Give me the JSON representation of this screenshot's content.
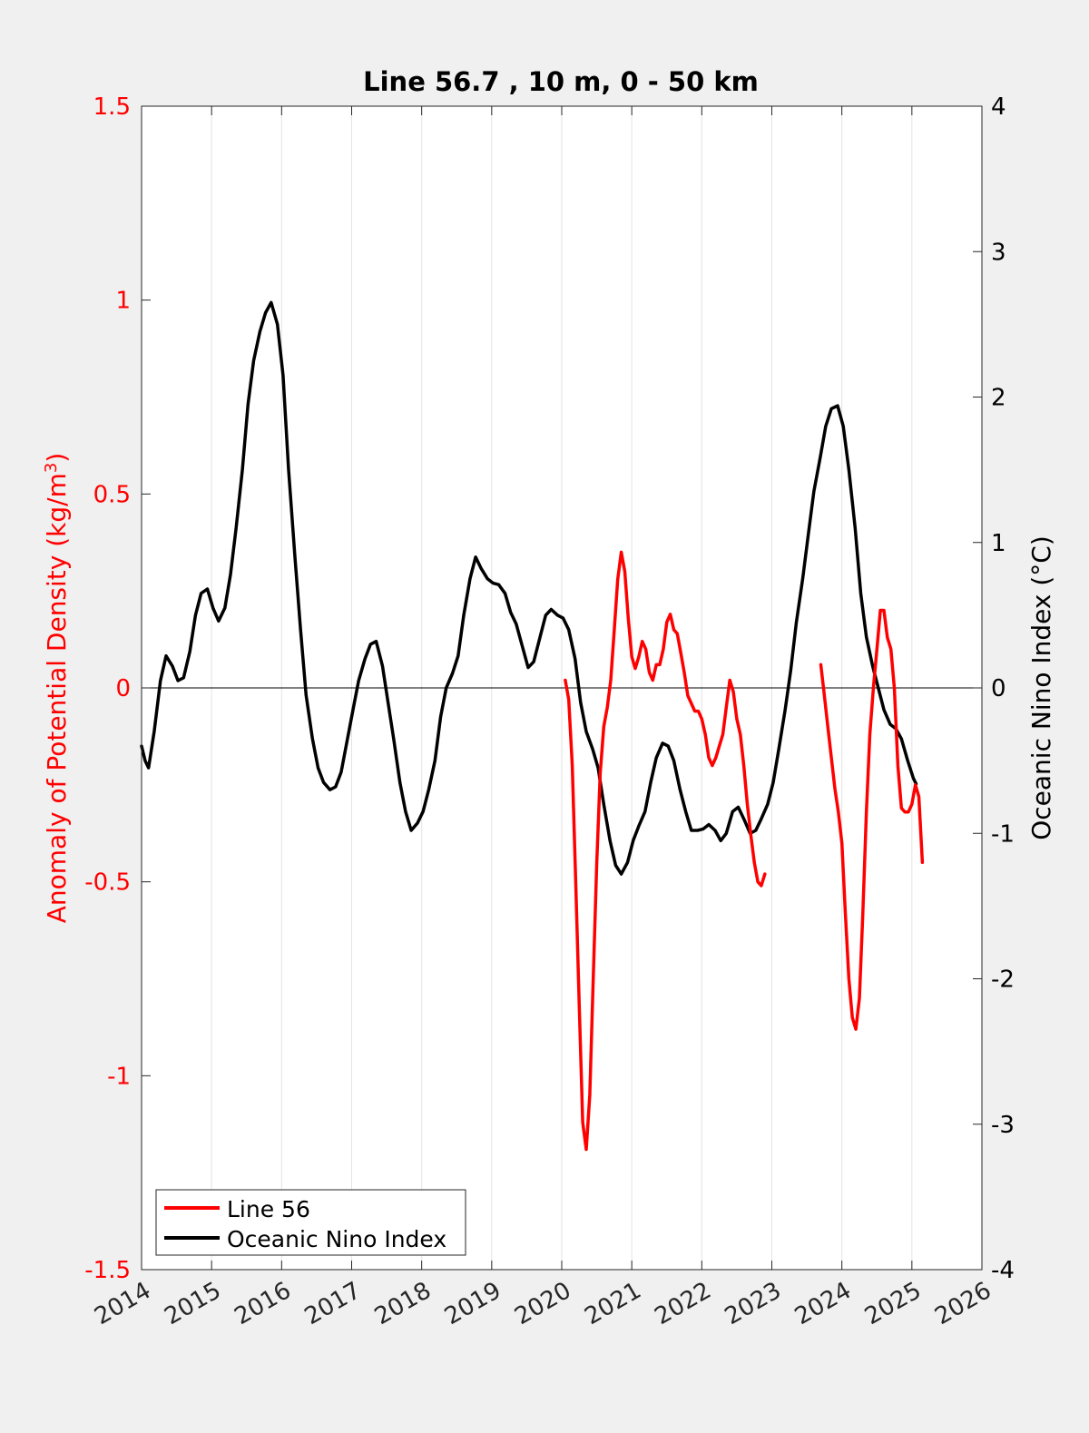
{
  "chart_data": {
    "type": "line",
    "title": "Line 56.7 , 10 m, 0 - 50 km",
    "xlabel": "",
    "ylabel_left": "Anomaly of Potential Density (kg/m",
    "ylabel_left_sup": "3",
    "ylabel_left_close": ")",
    "ylabel_right": "Oceanic Nino Index (°C)",
    "xlim": [
      2014,
      2026
    ],
    "ylim_left": [
      -1.5,
      1.5
    ],
    "ylim_right": [
      -4,
      4
    ],
    "x_ticks": [
      "2014",
      "2015",
      "2016",
      "2017",
      "2018",
      "2019",
      "2020",
      "2021",
      "2022",
      "2023",
      "2024",
      "2025",
      "2026"
    ],
    "y_left_ticks": [
      "-1.5",
      "-1",
      "-0.5",
      "0",
      "0.5",
      "1",
      "1.5"
    ],
    "y_right_ticks": [
      "-4",
      "-3",
      "-2",
      "-1",
      "0",
      "1",
      "2",
      "3",
      "4"
    ],
    "grid": "vertical",
    "legend_position": "bottom-left",
    "colors": {
      "line56": "#ff0000",
      "oni": "#000000",
      "left_axis": "#ff0000",
      "right_axis": "#000000"
    },
    "series": [
      {
        "name": "Line 56",
        "axis": "left",
        "segments": [
          [
            [
              2020.05,
              0.02
            ],
            [
              2020.1,
              -0.03
            ],
            [
              2020.15,
              -0.2
            ],
            [
              2020.2,
              -0.5
            ],
            [
              2020.25,
              -0.82
            ],
            [
              2020.3,
              -1.12
            ],
            [
              2020.35,
              -1.19
            ],
            [
              2020.4,
              -1.05
            ],
            [
              2020.45,
              -0.75
            ],
            [
              2020.5,
              -0.45
            ],
            [
              2020.55,
              -0.22
            ],
            [
              2020.6,
              -0.1
            ],
            [
              2020.65,
              -0.05
            ],
            [
              2020.7,
              0.02
            ],
            [
              2020.75,
              0.15
            ],
            [
              2020.8,
              0.28
            ],
            [
              2020.85,
              0.35
            ],
            [
              2020.9,
              0.3
            ],
            [
              2020.95,
              0.18
            ],
            [
              2021.0,
              0.08
            ],
            [
              2021.05,
              0.05
            ],
            [
              2021.1,
              0.08
            ],
            [
              2021.15,
              0.12
            ],
            [
              2021.2,
              0.1
            ],
            [
              2021.25,
              0.04
            ],
            [
              2021.3,
              0.02
            ],
            [
              2021.35,
              0.06
            ],
            [
              2021.4,
              0.06
            ],
            [
              2021.45,
              0.1
            ],
            [
              2021.5,
              0.17
            ],
            [
              2021.55,
              0.19
            ],
            [
              2021.6,
              0.15
            ],
            [
              2021.65,
              0.14
            ],
            [
              2021.7,
              0.09
            ],
            [
              2021.75,
              0.04
            ],
            [
              2021.8,
              -0.02
            ],
            [
              2021.85,
              -0.04
            ],
            [
              2021.9,
              -0.06
            ],
            [
              2021.95,
              -0.06
            ],
            [
              2022.0,
              -0.08
            ],
            [
              2022.05,
              -0.12
            ],
            [
              2022.1,
              -0.18
            ],
            [
              2022.15,
              -0.2
            ],
            [
              2022.2,
              -0.18
            ],
            [
              2022.25,
              -0.15
            ],
            [
              2022.3,
              -0.12
            ],
            [
              2022.35,
              -0.05
            ],
            [
              2022.4,
              0.02
            ],
            [
              2022.45,
              -0.01
            ],
            [
              2022.5,
              -0.08
            ],
            [
              2022.55,
              -0.12
            ],
            [
              2022.6,
              -0.2
            ],
            [
              2022.65,
              -0.3
            ],
            [
              2022.7,
              -0.38
            ],
            [
              2022.75,
              -0.45
            ],
            [
              2022.8,
              -0.5
            ],
            [
              2022.85,
              -0.51
            ],
            [
              2022.9,
              -0.48
            ]
          ],
          [
            [
              2023.7,
              0.06
            ],
            [
              2023.75,
              -0.02
            ],
            [
              2023.8,
              -0.1
            ],
            [
              2023.85,
              -0.18
            ],
            [
              2023.9,
              -0.26
            ],
            [
              2023.95,
              -0.32
            ],
            [
              2024.0,
              -0.4
            ],
            [
              2024.05,
              -0.58
            ],
            [
              2024.1,
              -0.75
            ],
            [
              2024.15,
              -0.85
            ],
            [
              2024.2,
              -0.88
            ],
            [
              2024.25,
              -0.8
            ],
            [
              2024.3,
              -0.58
            ],
            [
              2024.35,
              -0.32
            ],
            [
              2024.4,
              -0.12
            ],
            [
              2024.45,
              0.0
            ],
            [
              2024.5,
              0.1
            ],
            [
              2024.55,
              0.2
            ],
            [
              2024.6,
              0.2
            ],
            [
              2024.65,
              0.13
            ],
            [
              2024.7,
              0.1
            ],
            [
              2024.75,
              0.0
            ],
            [
              2024.8,
              -0.2
            ],
            [
              2024.85,
              -0.31
            ],
            [
              2024.9,
              -0.32
            ],
            [
              2024.95,
              -0.32
            ],
            [
              2025.0,
              -0.3
            ],
            [
              2025.05,
              -0.25
            ],
            [
              2025.1,
              -0.28
            ],
            [
              2025.15,
              -0.45
            ]
          ]
        ]
      },
      {
        "name": "Oceanic Nino Index",
        "axis": "right",
        "segments": [
          [
            [
              2014.0,
              -0.4
            ],
            [
              2014.05,
              -0.5
            ],
            [
              2014.1,
              -0.55
            ],
            [
              2014.18,
              -0.3
            ],
            [
              2014.27,
              0.05
            ],
            [
              2014.35,
              0.22
            ],
            [
              2014.44,
              0.15
            ],
            [
              2014.52,
              0.05
            ],
            [
              2014.6,
              0.07
            ],
            [
              2014.69,
              0.25
            ],
            [
              2014.77,
              0.5
            ],
            [
              2014.85,
              0.65
            ],
            [
              2014.94,
              0.68
            ],
            [
              2015.02,
              0.55
            ],
            [
              2015.1,
              0.46
            ],
            [
              2015.19,
              0.55
            ],
            [
              2015.27,
              0.78
            ],
            [
              2015.35,
              1.1
            ],
            [
              2015.44,
              1.5
            ],
            [
              2015.52,
              1.95
            ],
            [
              2015.6,
              2.25
            ],
            [
              2015.69,
              2.45
            ],
            [
              2015.77,
              2.58
            ],
            [
              2015.85,
              2.65
            ],
            [
              2015.94,
              2.5
            ],
            [
              2016.02,
              2.15
            ],
            [
              2016.1,
              1.5
            ],
            [
              2016.19,
              0.9
            ],
            [
              2016.27,
              0.4
            ],
            [
              2016.35,
              -0.05
            ],
            [
              2016.44,
              -0.35
            ],
            [
              2016.52,
              -0.55
            ],
            [
              2016.6,
              -0.65
            ],
            [
              2016.69,
              -0.7
            ],
            [
              2016.77,
              -0.68
            ],
            [
              2016.85,
              -0.58
            ],
            [
              2016.94,
              -0.35
            ],
            [
              2017.02,
              -0.15
            ],
            [
              2017.1,
              0.05
            ],
            [
              2017.19,
              0.2
            ],
            [
              2017.27,
              0.3
            ],
            [
              2017.35,
              0.32
            ],
            [
              2017.44,
              0.15
            ],
            [
              2017.52,
              -0.1
            ],
            [
              2017.6,
              -0.35
            ],
            [
              2017.69,
              -0.65
            ],
            [
              2017.77,
              -0.85
            ],
            [
              2017.85,
              -0.98
            ],
            [
              2017.94,
              -0.93
            ],
            [
              2018.02,
              -0.85
            ],
            [
              2018.1,
              -0.7
            ],
            [
              2018.19,
              -0.5
            ],
            [
              2018.27,
              -0.2
            ],
            [
              2018.35,
              0.0
            ],
            [
              2018.44,
              0.1
            ],
            [
              2018.52,
              0.22
            ],
            [
              2018.6,
              0.5
            ],
            [
              2018.69,
              0.75
            ],
            [
              2018.77,
              0.9
            ],
            [
              2018.85,
              0.82
            ],
            [
              2018.94,
              0.75
            ],
            [
              2019.02,
              0.72
            ],
            [
              2019.1,
              0.71
            ],
            [
              2019.19,
              0.65
            ],
            [
              2019.27,
              0.52
            ],
            [
              2019.35,
              0.44
            ],
            [
              2019.44,
              0.28
            ],
            [
              2019.52,
              0.14
            ],
            [
              2019.6,
              0.18
            ],
            [
              2019.69,
              0.35
            ],
            [
              2019.77,
              0.5
            ],
            [
              2019.85,
              0.54
            ],
            [
              2019.94,
              0.5
            ],
            [
              2020.02,
              0.48
            ],
            [
              2020.1,
              0.4
            ],
            [
              2020.19,
              0.2
            ],
            [
              2020.27,
              -0.1
            ],
            [
              2020.35,
              -0.3
            ],
            [
              2020.44,
              -0.42
            ],
            [
              2020.52,
              -0.55
            ],
            [
              2020.6,
              -0.8
            ],
            [
              2020.69,
              -1.05
            ],
            [
              2020.77,
              -1.22
            ],
            [
              2020.85,
              -1.28
            ],
            [
              2020.94,
              -1.2
            ],
            [
              2021.02,
              -1.05
            ],
            [
              2021.1,
              -0.95
            ],
            [
              2021.19,
              -0.85
            ],
            [
              2021.27,
              -0.65
            ],
            [
              2021.35,
              -0.48
            ],
            [
              2021.44,
              -0.38
            ],
            [
              2021.52,
              -0.4
            ],
            [
              2021.6,
              -0.5
            ],
            [
              2021.69,
              -0.7
            ],
            [
              2021.77,
              -0.85
            ],
            [
              2021.85,
              -0.98
            ],
            [
              2021.94,
              -0.98
            ],
            [
              2022.02,
              -0.97
            ],
            [
              2022.1,
              -0.94
            ],
            [
              2022.19,
              -0.98
            ],
            [
              2022.27,
              -1.05
            ],
            [
              2022.35,
              -1.0
            ],
            [
              2022.44,
              -0.85
            ],
            [
              2022.52,
              -0.82
            ],
            [
              2022.6,
              -0.9
            ],
            [
              2022.69,
              -1.0
            ],
            [
              2022.77,
              -0.98
            ],
            [
              2022.85,
              -0.9
            ],
            [
              2022.94,
              -0.8
            ],
            [
              2023.02,
              -0.65
            ],
            [
              2023.1,
              -0.42
            ],
            [
              2023.19,
              -0.15
            ],
            [
              2023.27,
              0.12
            ],
            [
              2023.35,
              0.45
            ],
            [
              2023.44,
              0.75
            ],
            [
              2023.52,
              1.05
            ],
            [
              2023.6,
              1.35
            ],
            [
              2023.69,
              1.58
            ],
            [
              2023.77,
              1.8
            ],
            [
              2023.85,
              1.92
            ],
            [
              2023.94,
              1.94
            ],
            [
              2024.02,
              1.8
            ],
            [
              2024.1,
              1.5
            ],
            [
              2024.19,
              1.1
            ],
            [
              2024.27,
              0.65
            ],
            [
              2024.35,
              0.35
            ],
            [
              2024.44,
              0.15
            ],
            [
              2024.52,
              0.0
            ],
            [
              2024.6,
              -0.15
            ],
            [
              2024.69,
              -0.25
            ],
            [
              2024.77,
              -0.28
            ],
            [
              2024.85,
              -0.35
            ],
            [
              2024.94,
              -0.5
            ],
            [
              2025.02,
              -0.62
            ],
            [
              2025.06,
              -0.66
            ]
          ]
        ]
      }
    ]
  }
}
